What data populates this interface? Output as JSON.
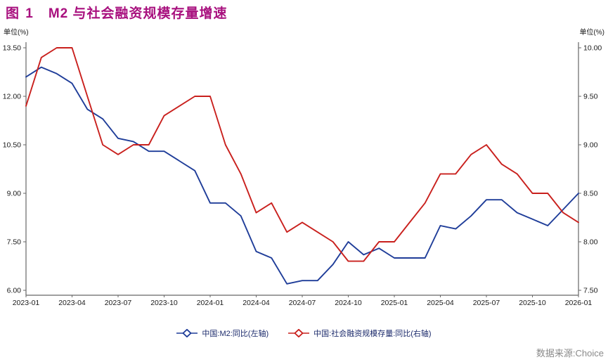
{
  "title": {
    "figure_label": "图 1",
    "text": "M2 与社会融资规模存量增速"
  },
  "footer": {
    "source": "数据来源:Choice"
  },
  "colors": {
    "title": "#a8107e",
    "m2_line": "#1f3d99",
    "tsf_line": "#c9201d",
    "axis": "#666666",
    "tick_label": "#1a1a1a",
    "legend_text": "#1b2a6b",
    "source_text": "#8a8a8a"
  },
  "chart_data": {
    "type": "line",
    "title": "图1 M2与社会融资规模存量增速",
    "grid": false,
    "legend_position": "bottom",
    "x": [
      "2023-01",
      "2023-02",
      "2023-03",
      "2023-04",
      "2023-05",
      "2023-06",
      "2023-07",
      "2023-08",
      "2023-09",
      "2023-10",
      "2023-11",
      "2023-12",
      "2024-01",
      "2024-02",
      "2024-03",
      "2024-04",
      "2024-05",
      "2024-06",
      "2024-07",
      "2024-08",
      "2024-09",
      "2024-10",
      "2024-11",
      "2024-12",
      "2025-01",
      "2025-02",
      "2025-03",
      "2025-04",
      "2025-05",
      "2025-06",
      "2025-07",
      "2025-08",
      "2025-09",
      "2025-10",
      "2025-11",
      "2025-12",
      "2026-01"
    ],
    "x_tick_labels": [
      "2023-01",
      "2023-04",
      "2023-07",
      "2023-10",
      "2024-01",
      "2024-04",
      "2024-07",
      "2024-10",
      "2025-01",
      "2025-04",
      "2025-07",
      "2025-10",
      "2026-01"
    ],
    "left_axis": {
      "unit": "单位(%)",
      "min": 6.0,
      "max": 13.5,
      "ticks": [
        "13.50",
        "12.00",
        "10.50",
        "9.00",
        "7.50",
        "6.00"
      ]
    },
    "right_axis": {
      "unit": "单位(%)",
      "min": 7.5,
      "max": 10.0,
      "ticks": [
        "10.00",
        "9.50",
        "9.00",
        "8.50",
        "8.00",
        "7.50"
      ]
    },
    "series": [
      {
        "name": "中国:M2:同比(左轴)",
        "axis": "left",
        "color": "#1f3d99",
        "values": [
          12.6,
          12.9,
          12.7,
          12.4,
          11.6,
          11.3,
          10.7,
          10.6,
          10.3,
          10.3,
          10.0,
          9.7,
          8.7,
          8.7,
          8.3,
          7.2,
          7.0,
          6.2,
          6.3,
          6.3,
          6.8,
          7.5,
          7.1,
          7.3,
          7.0,
          7.0,
          7.0,
          8.0,
          7.9,
          8.3,
          8.8,
          8.8,
          8.4,
          8.2,
          8.0,
          8.5,
          9.0
        ]
      },
      {
        "name": "中国:社会融资规模存量:同比(右轴)",
        "axis": "right",
        "color": "#c9201d",
        "values": [
          9.4,
          9.9,
          10.0,
          10.0,
          9.5,
          9.0,
          8.9,
          9.0,
          9.0,
          9.3,
          9.4,
          9.5,
          9.5,
          9.0,
          8.7,
          8.3,
          8.4,
          8.1,
          8.2,
          8.1,
          8.0,
          7.8,
          7.8,
          8.0,
          8.0,
          8.2,
          8.4,
          8.7,
          8.7,
          8.9,
          9.0,
          8.8,
          8.7,
          8.5,
          8.5,
          8.3,
          8.2
        ]
      }
    ]
  }
}
